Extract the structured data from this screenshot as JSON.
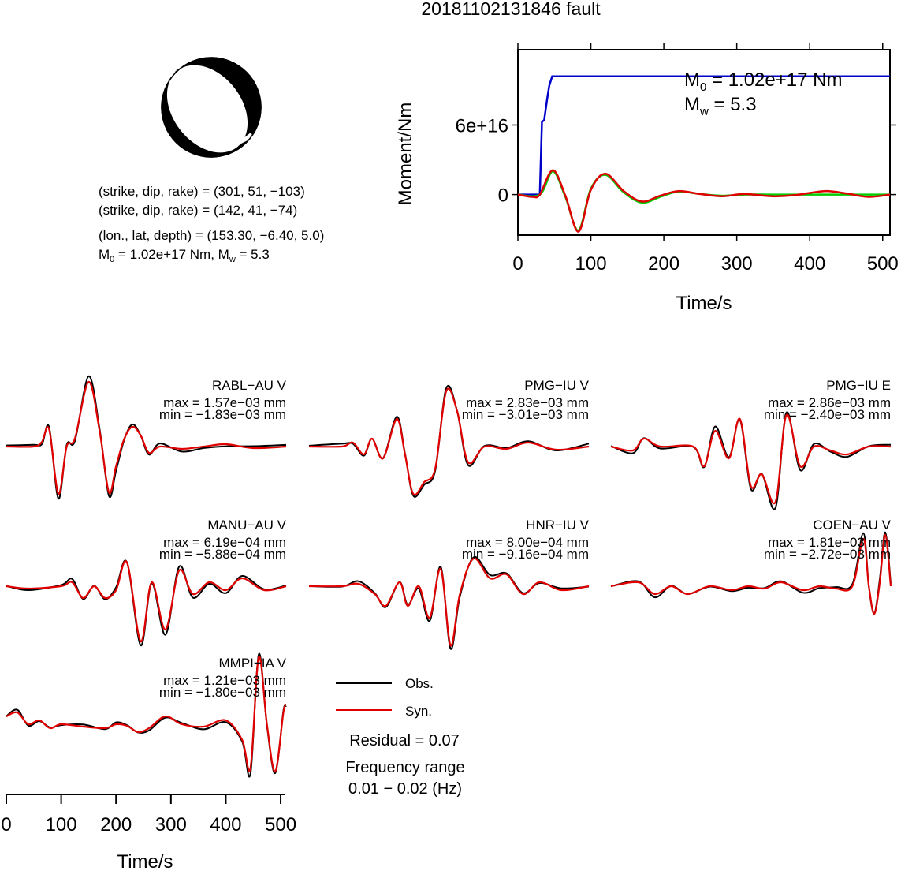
{
  "title": "20181102131846 fault",
  "info": {
    "np1": "(strike, dip, rake) = (301, 51, −103)",
    "np2": "(strike, dip, rake) = (142, 41, −74)",
    "loc": "(lon., lat, depth) = (153.30, −6.40, 5.0)",
    "m0_text": "M",
    "m0_sub": "0",
    "m0_rest": " = 1.02e+17 Nm, M",
    "mw_sub": "w",
    "mw_rest": " = 5.3"
  },
  "colors": {
    "obs": "#000000",
    "syn": "#e00000",
    "moment": "#0000cc",
    "stf_syn": "#00cc00",
    "beach": "#000000"
  },
  "chart_data": [
    {
      "type": "line",
      "title": "",
      "xlabel": "Time/s",
      "ylabel": "Moment/Nm",
      "xlim": [
        0,
        510
      ],
      "ylim": [
        -3.5e+16,
        1.25e+17
      ],
      "xticks": [
        "0",
        "100",
        "200",
        "300",
        "400",
        "500"
      ],
      "yticks": [
        "0",
        "6e+16"
      ],
      "annotation_m0": {
        "sym": "M",
        "sub": "0",
        "rest": " = 1.02e+17 Nm"
      },
      "annotation_mw": {
        "sym": "M",
        "sub": "w",
        "rest": " = 5.3"
      },
      "series": [
        {
          "color": "#0000cc",
          "x": [
            0,
            30,
            33,
            36,
            40,
            43,
            47,
            52,
            510
          ],
          "y": [
            0,
            0,
            6.3e+16,
            6.4e+16,
            8.2e+16,
            9.4e+16,
            1.02e+17,
            1.02e+17,
            1.02e+17
          ]
        },
        {
          "color": "#00cc00",
          "x": [
            0,
            30,
            48,
            65,
            83,
            100,
            120,
            145,
            170,
            195,
            220,
            250,
            280,
            310,
            350,
            400,
            450,
            510
          ],
          "y": [
            0,
            0,
            2e+16,
            -2000000000000000.0,
            -3.1e+16,
            5000000000000000.0,
            1.7e+16,
            2000000000000000.0,
            -7000000000000000.0,
            -2000000000000000.0,
            2500000000000000.0,
            500000000000000.0,
            -1000000000000000.0,
            0,
            0,
            0,
            0,
            0
          ]
        },
        {
          "color": "#e00000",
          "x": [
            0,
            20,
            30,
            48,
            65,
            83,
            100,
            120,
            145,
            170,
            195,
            220,
            250,
            280,
            310,
            350,
            380,
            420,
            450,
            480,
            510
          ],
          "y": [
            0,
            -2000000000000000.0,
            0,
            2.1e+16,
            -1000000000000000.0,
            -3.2e+16,
            4000000000000000.0,
            1.8e+16,
            3000000000000000.0,
            -6000000000000000.0,
            -1000000000000000.0,
            3000000000000000.0,
            500000000000000.0,
            -1500000000000000.0,
            500000000000000.0,
            -1500000000000000.0,
            -500000000000000.0,
            3000000000000000.0,
            1000000000000000.0,
            -2000000000000000.0,
            0
          ]
        }
      ]
    }
  ],
  "stations": [
    {
      "name": "RABL−AU V",
      "max": "max = 1.57e−03 mm",
      "min": "min = −1.83e−03 mm"
    },
    {
      "name": "PMG−IU V",
      "max": "max = 2.83e−03 mm",
      "min": "min = −3.01e−03 mm"
    },
    {
      "name": "PMG−IU E",
      "max": "max = 2.86e−03 mm",
      "min": "min = −2.40e−03 mm"
    },
    {
      "name": "MANU−AU V",
      "max": "max = 6.19e−04 mm",
      "min": "min = −5.88e−04 mm"
    },
    {
      "name": "HNR−IU V",
      "max": "max = 8.00e−04 mm",
      "min": "min = −9.16e−04 mm"
    },
    {
      "name": "COEN−AU V",
      "max": "max = 1.81e−03 mm",
      "min": "min = −2.72e−03 mm"
    },
    {
      "name": "MMPI−IA V",
      "max": "max = 1.21e−03 mm",
      "min": "min = −1.80e−03 mm"
    }
  ],
  "wave_axis": {
    "xlabel": "Time/s",
    "xticks": [
      "0",
      "100",
      "200",
      "300",
      "400",
      "500"
    ]
  },
  "legend": {
    "obs": "Obs.",
    "syn": "Syn."
  },
  "residual": "Residual = 0.07",
  "freq_title": "Frequency range",
  "freq_range": "0.01 − 0.02 (Hz)"
}
